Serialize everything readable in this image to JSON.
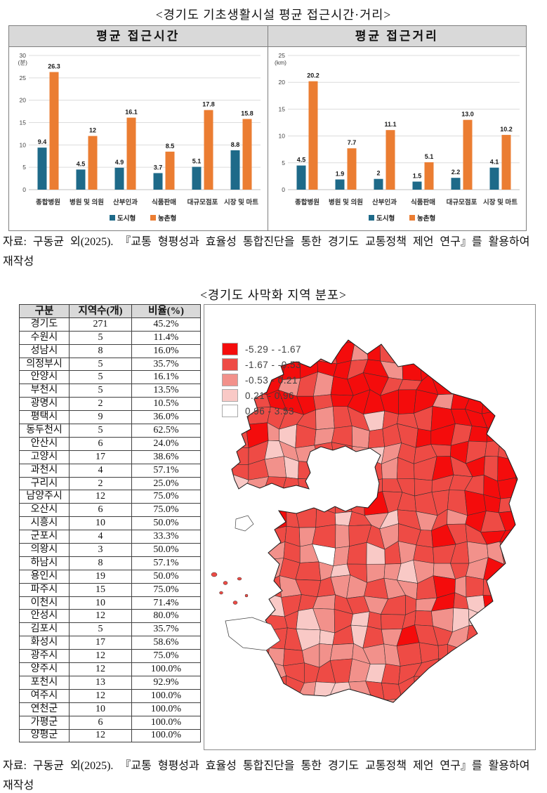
{
  "page": {
    "title1": "<경기도 기초생활시설 평균 접근시간·거리>",
    "title2": "<경기도 사막화 지역 분포>",
    "source_line1": "자료: 구동균 외(2025). 『교통 형평성과 효율성 통합진단을 통한 경기도 교통정책 제언 연구』를 활용하여",
    "source_line2": "재작성"
  },
  "chart_data": [
    {
      "type": "bar",
      "title": "평균 접근시간",
      "unit": "(분)",
      "ylim": [
        0,
        30
      ],
      "ytick_step": 5,
      "grid": true,
      "legend_position": "bottom",
      "categories": [
        "종합병원",
        "병원 및 의원",
        "산부인과",
        "식품판매",
        "대규모점포",
        "시장 및 마트"
      ],
      "series": [
        {
          "name": "도시형",
          "color": "#1E6A89",
          "values": [
            "9.4",
            "4.5",
            "4.9",
            "3.7",
            "5.1",
            "8.8"
          ]
        },
        {
          "name": "농촌형",
          "color": "#EB7D32",
          "values": [
            "26.3",
            "12",
            "16.1",
            "8.5",
            "17.8",
            "15.8"
          ]
        }
      ]
    },
    {
      "type": "bar",
      "title": "평균 접근거리",
      "unit": "(km)",
      "ylim": [
        0,
        25
      ],
      "ytick_step": 5,
      "grid": true,
      "legend_position": "bottom",
      "categories": [
        "종합병원",
        "병원 및 의원",
        "산부인과",
        "식품판매",
        "대규모점포",
        "시장 및 마트"
      ],
      "series": [
        {
          "name": "도시형",
          "color": "#1E6A89",
          "values": [
            "4.5",
            "1.9",
            "2",
            "1.5",
            "2.2",
            "4.1"
          ]
        },
        {
          "name": "농촌형",
          "color": "#EB7D32",
          "values": [
            "20.2",
            "7.7",
            "11.1",
            "5.1",
            "13.0",
            "10.2"
          ]
        }
      ]
    }
  ],
  "table": {
    "headers": [
      "구분",
      "지역수(개)",
      "비율(%)"
    ],
    "rows": [
      [
        "경기도",
        "271",
        "45.2%"
      ],
      [
        "수원시",
        "5",
        "11.4%"
      ],
      [
        "성남시",
        "8",
        "16.0%"
      ],
      [
        "의정부시",
        "5",
        "35.7%"
      ],
      [
        "안양시",
        "5",
        "16.1%"
      ],
      [
        "부천시",
        "5",
        "13.5%"
      ],
      [
        "광명시",
        "2",
        "10.5%"
      ],
      [
        "평택시",
        "9",
        "36.0%"
      ],
      [
        "동두천시",
        "5",
        "62.5%"
      ],
      [
        "안산시",
        "6",
        "24.0%"
      ],
      [
        "고양시",
        "17",
        "38.6%"
      ],
      [
        "과천시",
        "4",
        "57.1%"
      ],
      [
        "구리시",
        "2",
        "25.0%"
      ],
      [
        "남양주시",
        "12",
        "75.0%"
      ],
      [
        "오산시",
        "6",
        "75.0%"
      ],
      [
        "시흥시",
        "10",
        "50.0%"
      ],
      [
        "군포시",
        "4",
        "33.3%"
      ],
      [
        "의왕시",
        "3",
        "50.0%"
      ],
      [
        "하남시",
        "8",
        "57.1%"
      ],
      [
        "용인시",
        "19",
        "50.0%"
      ],
      [
        "파주시",
        "15",
        "75.0%"
      ],
      [
        "이천시",
        "10",
        "71.4%"
      ],
      [
        "안성시",
        "12",
        "80.0%"
      ],
      [
        "김포시",
        "5",
        "35.7%"
      ],
      [
        "화성시",
        "17",
        "58.6%"
      ],
      [
        "광주시",
        "12",
        "75.0%"
      ],
      [
        "양주시",
        "12",
        "100.0%"
      ],
      [
        "포천시",
        "13",
        "92.9%"
      ],
      [
        "여주시",
        "12",
        "100.0%"
      ],
      [
        "연천군",
        "10",
        "100.0%"
      ],
      [
        "가평군",
        "6",
        "100.0%"
      ],
      [
        "양평군",
        "12",
        "100.0%"
      ]
    ]
  },
  "map": {
    "legend": [
      {
        "label": "-5.29 - -1.67",
        "color": "#F40C0C"
      },
      {
        "label": "-1.67 - -0.53",
        "color": "#EE4B45"
      },
      {
        "label": "-0.53 - 0.21",
        "color": "#F2918B"
      },
      {
        "label": "0.21 - 0.96",
        "color": "#F9C9C6"
      },
      {
        "label": "0.96 - 3.53",
        "color": "#FFFFFF"
      }
    ],
    "palette": {
      "bright": "#F40C0C",
      "mid": "#EE4B45",
      "light": "#F2918B",
      "pale": "#F9C9C6",
      "white": "#FFFFFF"
    }
  }
}
